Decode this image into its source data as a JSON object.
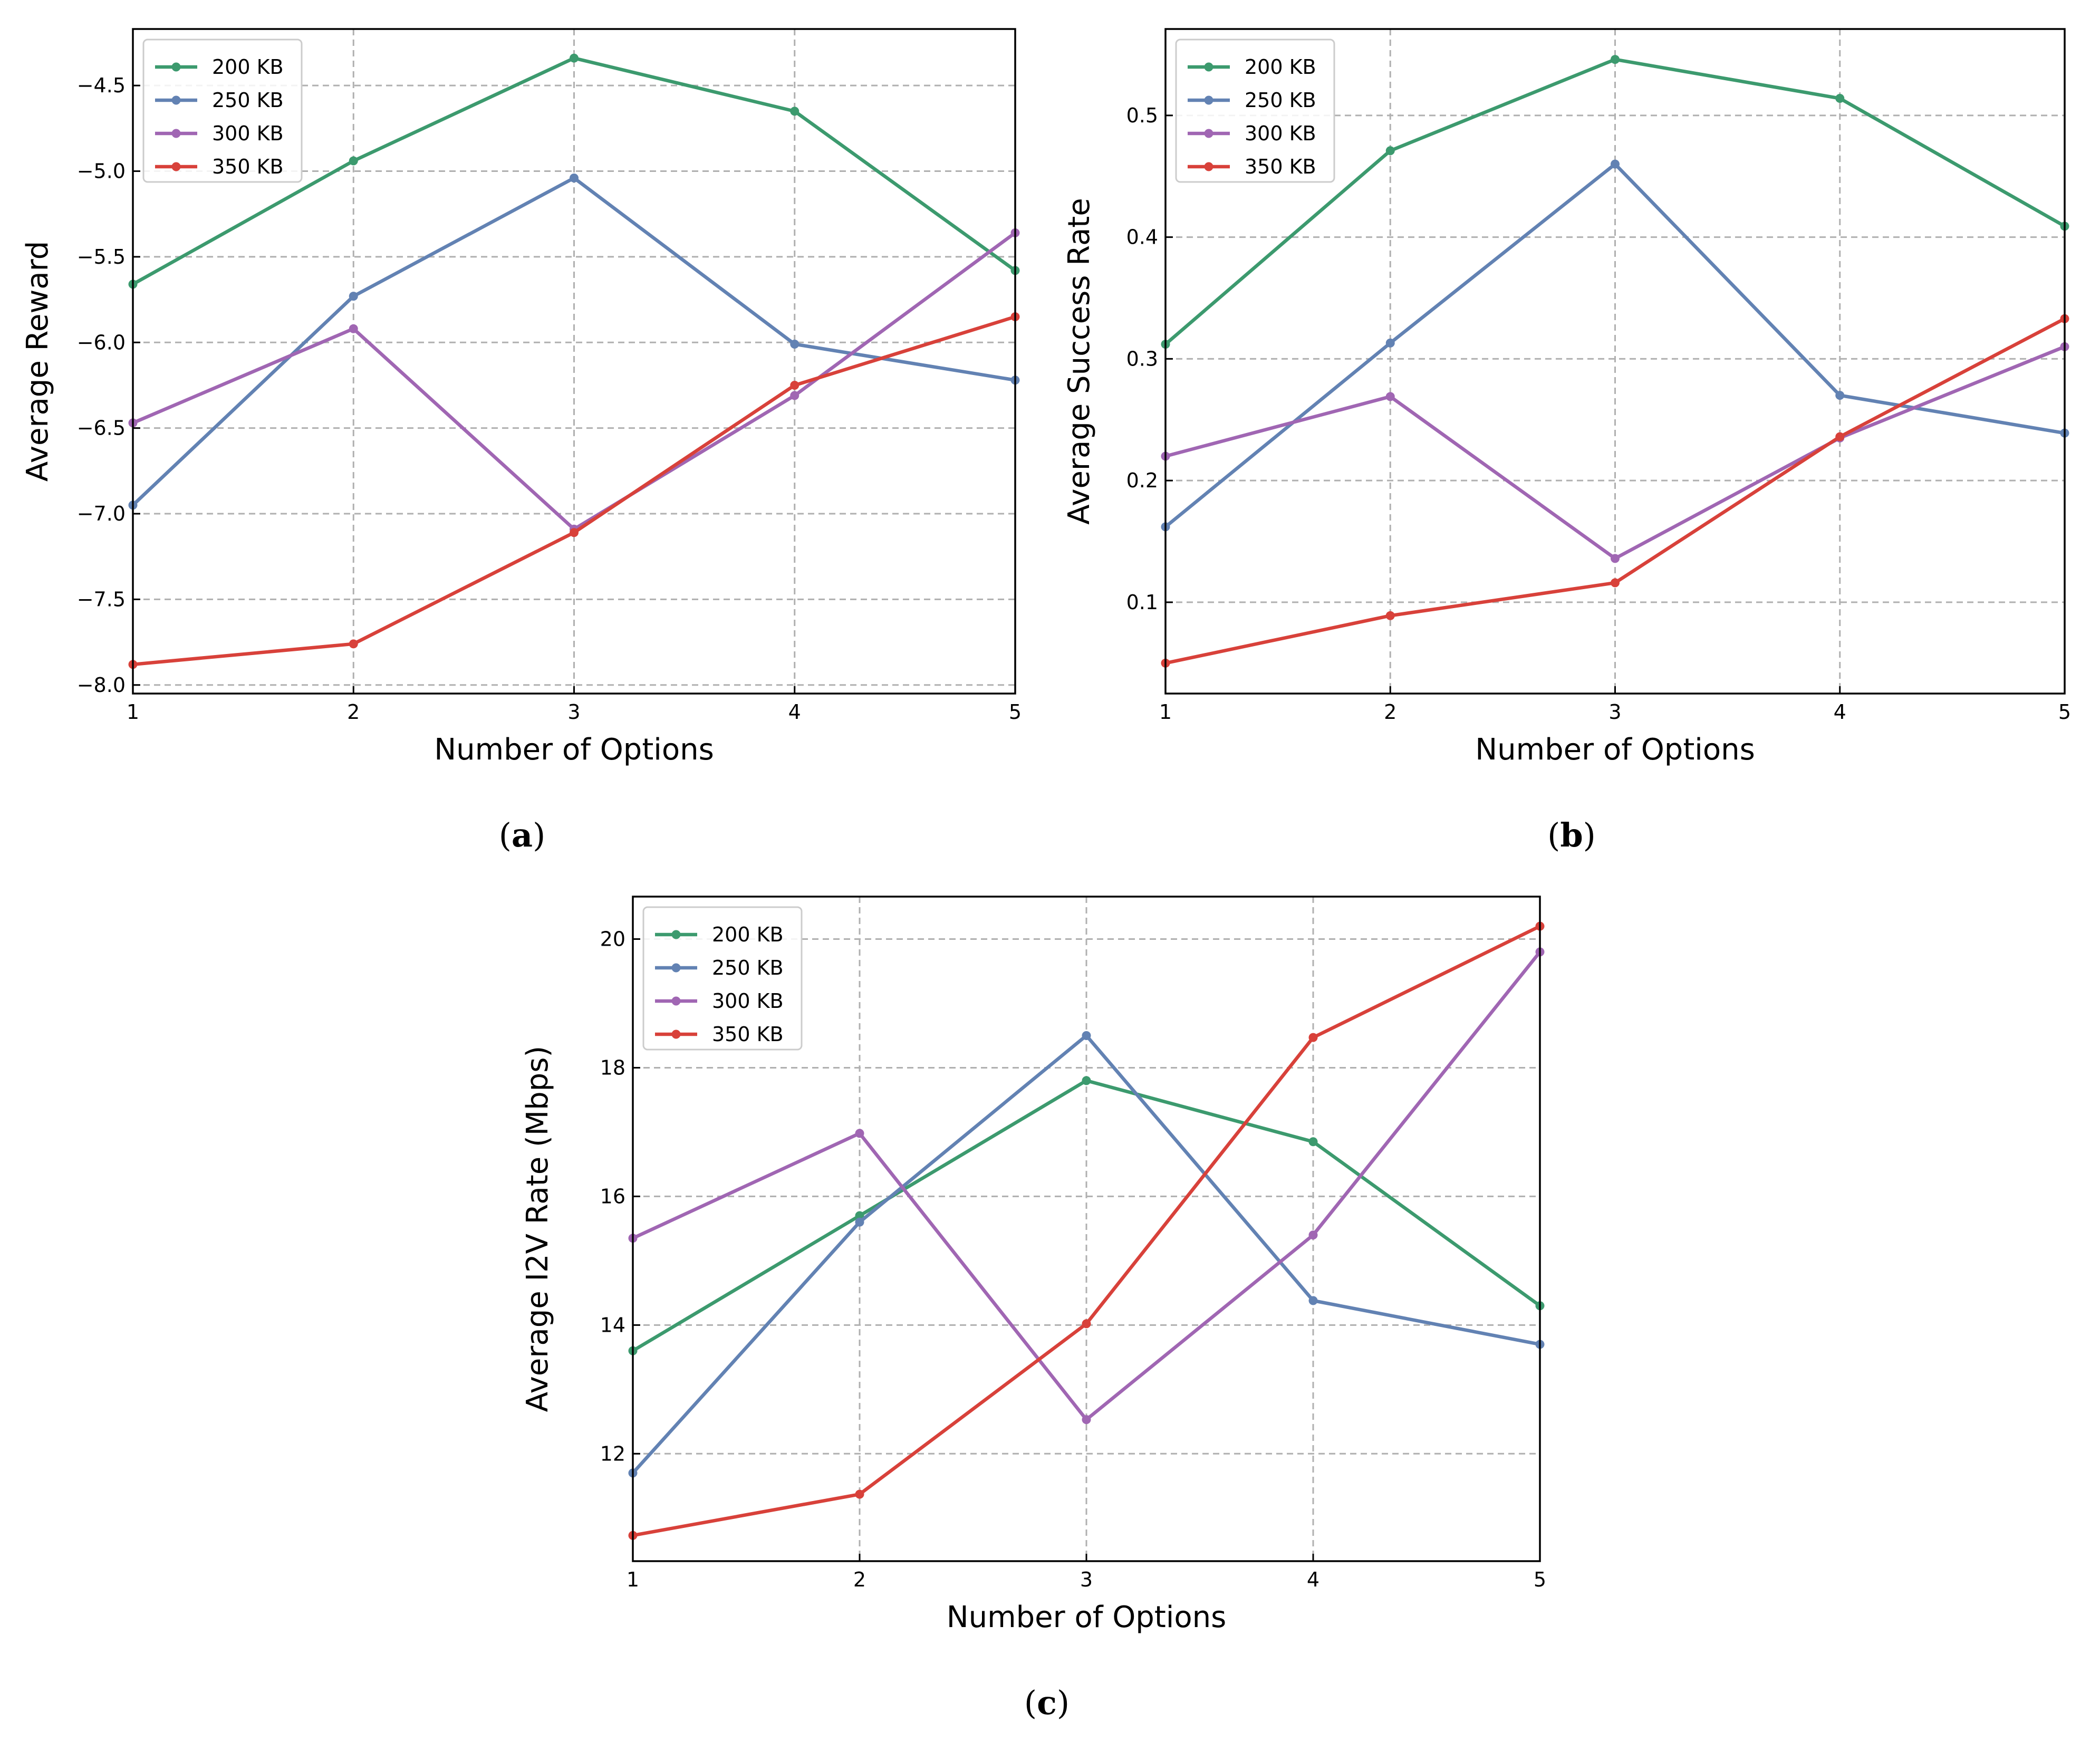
{
  "chart_data": [
    {
      "id": "a",
      "type": "line",
      "panel_label": "a",
      "xlabel": "Number of Options",
      "ylabel": "Average Reward",
      "x": [
        1,
        2,
        3,
        4,
        5
      ],
      "xticks": [
        "1",
        "2",
        "3",
        "4",
        "5"
      ],
      "xlim": [
        1,
        5
      ],
      "ylim": [
        -8.05,
        -4.17
      ],
      "yticks": [
        -8.0,
        -7.5,
        -7.0,
        -6.5,
        -6.0,
        -5.5,
        -5.0,
        -4.5
      ],
      "ytick_labels": [
        "−8.0",
        "−7.5",
        "−7.0",
        "−6.5",
        "−6.0",
        "−5.5",
        "−5.0",
        "−4.5"
      ],
      "grid": true,
      "legend_position": "top-left",
      "series": [
        {
          "name": "200 KB",
          "color": "#3c9a6e",
          "values": [
            -5.66,
            -4.94,
            -4.34,
            -4.65,
            -5.58
          ]
        },
        {
          "name": "250 KB",
          "color": "#6282b3",
          "values": [
            -6.95,
            -5.73,
            -5.04,
            -6.01,
            -6.22
          ]
        },
        {
          "name": "300 KB",
          "color": "#a066b3",
          "values": [
            -6.47,
            -5.92,
            -7.09,
            -6.31,
            -5.36
          ]
        },
        {
          "name": "350 KB",
          "color": "#d8413a",
          "values": [
            -7.88,
            -7.76,
            -7.11,
            -6.25,
            -5.85
          ]
        }
      ]
    },
    {
      "id": "b",
      "type": "line",
      "panel_label": "b",
      "xlabel": "Number of Options",
      "ylabel": "Average Success Rate",
      "x": [
        1,
        2,
        3,
        4,
        5
      ],
      "xticks": [
        "1",
        "2",
        "3",
        "4",
        "5"
      ],
      "xlim": [
        1,
        5
      ],
      "ylim": [
        0.025,
        0.571
      ],
      "yticks": [
        0.1,
        0.2,
        0.3,
        0.4,
        0.5
      ],
      "ytick_labels": [
        "0.1",
        "0.2",
        "0.3",
        "0.4",
        "0.5"
      ],
      "grid": true,
      "legend_position": "top-left",
      "series": [
        {
          "name": "200 KB",
          "color": "#3c9a6e",
          "values": [
            0.312,
            0.471,
            0.546,
            0.514,
            0.409
          ]
        },
        {
          "name": "250 KB",
          "color": "#6282b3",
          "values": [
            0.162,
            0.313,
            0.46,
            0.27,
            0.239
          ]
        },
        {
          "name": "300 KB",
          "color": "#a066b3",
          "values": [
            0.22,
            0.269,
            0.136,
            0.235,
            0.31
          ]
        },
        {
          "name": "350 KB",
          "color": "#d8413a",
          "values": [
            0.05,
            0.089,
            0.116,
            0.236,
            0.333
          ]
        }
      ]
    },
    {
      "id": "c",
      "type": "line",
      "panel_label": "c",
      "xlabel": "Number of Options",
      "ylabel": "Average I2V Rate (Mbps)",
      "x": [
        1,
        2,
        3,
        4,
        5
      ],
      "xticks": [
        "1",
        "2",
        "3",
        "4",
        "5"
      ],
      "xlim": [
        1,
        5
      ],
      "ylim": [
        10.33,
        20.66
      ],
      "yticks": [
        12,
        14,
        16,
        18,
        20
      ],
      "ytick_labels": [
        "12",
        "14",
        "16",
        "18",
        "20"
      ],
      "grid": true,
      "legend_position": "top-left",
      "series": [
        {
          "name": "200 KB",
          "color": "#3c9a6e",
          "values": [
            13.6,
            15.7,
            17.8,
            16.85,
            14.3
          ]
        },
        {
          "name": "250 KB",
          "color": "#6282b3",
          "values": [
            11.7,
            15.6,
            18.5,
            14.38,
            13.7
          ]
        },
        {
          "name": "300 KB",
          "color": "#a066b3",
          "values": [
            15.35,
            16.98,
            12.53,
            15.4,
            19.8
          ]
        },
        {
          "name": "350 KB",
          "color": "#d8413a",
          "values": [
            10.73,
            11.37,
            14.02,
            18.47,
            20.2
          ]
        }
      ]
    }
  ]
}
